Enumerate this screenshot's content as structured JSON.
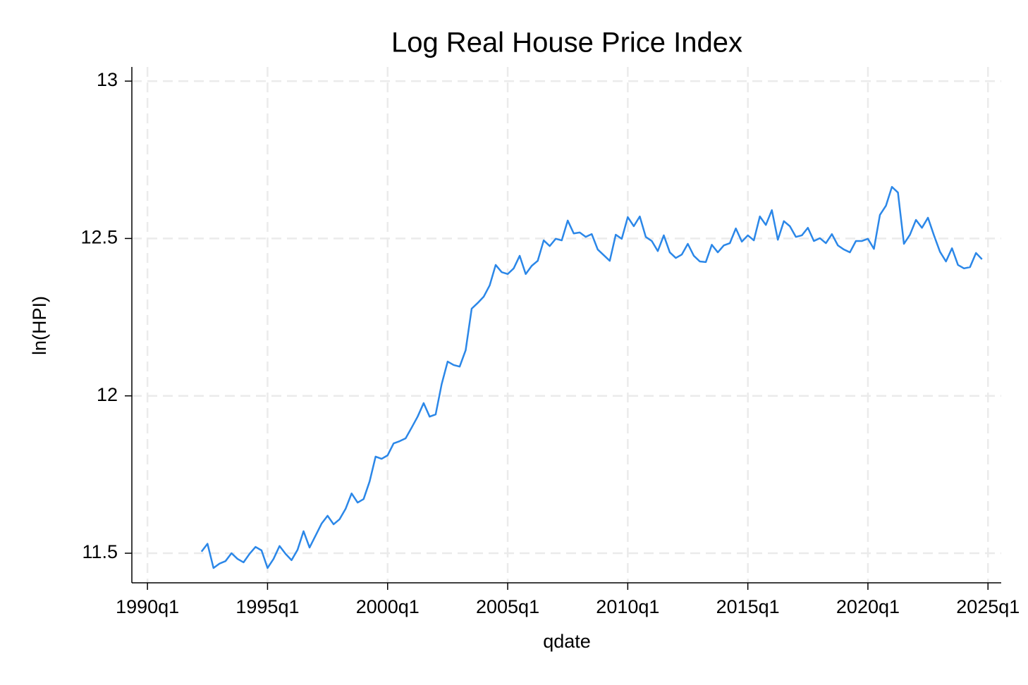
{
  "chart_data": {
    "type": "line",
    "title": "Log Real House Price Index",
    "x_label": "qdate",
    "y_label": "ln(HPI)",
    "color": "#2b87e8",
    "grid": true,
    "xlim": [
      117.4,
      262.2
    ],
    "ylim": [
      11.406,
      13.045
    ],
    "xticks": [
      {
        "value": 120,
        "label": "1990q1"
      },
      {
        "value": 140,
        "label": "1995q1"
      },
      {
        "value": 160,
        "label": "2000q1"
      },
      {
        "value": 180,
        "label": "2005q1"
      },
      {
        "value": 200,
        "label": "2010q1"
      },
      {
        "value": 220,
        "label": "2015q1"
      },
      {
        "value": 240,
        "label": "2020q1"
      },
      {
        "value": 260,
        "label": "2025q1"
      }
    ],
    "yticks": [
      11.5,
      12,
      12.5,
      13
    ],
    "x": [
      129,
      130,
      131,
      132,
      133,
      134,
      135,
      136,
      137,
      138,
      139,
      140,
      141,
      142,
      143,
      144,
      145,
      146,
      147,
      148,
      149,
      150,
      151,
      152,
      153,
      154,
      155,
      156,
      157,
      158,
      159,
      160,
      161,
      162,
      163,
      164,
      165,
      166,
      167,
      168,
      169,
      170,
      171,
      172,
      173,
      174,
      175,
      176,
      177,
      178,
      179,
      180,
      181,
      182,
      183,
      184,
      185,
      186,
      187,
      188,
      189,
      190,
      191,
      192,
      193,
      194,
      195,
      196,
      197,
      198,
      199,
      200,
      201,
      202,
      203,
      204,
      205,
      206,
      207,
      208,
      209,
      210,
      211,
      212,
      213,
      214,
      215,
      216,
      217,
      218,
      219,
      220,
      221,
      222,
      223,
      224,
      225,
      226,
      227,
      228,
      229,
      230,
      231,
      232,
      233,
      234,
      235,
      236,
      237,
      238,
      239,
      240,
      241,
      242,
      243,
      244,
      245,
      246,
      247,
      248,
      249,
      250,
      251,
      252,
      253,
      254,
      255,
      256,
      257,
      258,
      259
    ],
    "values": [
      11.505,
      11.53,
      11.453,
      11.467,
      11.475,
      11.5,
      11.482,
      11.471,
      11.498,
      11.52,
      11.509,
      11.453,
      11.482,
      11.523,
      11.498,
      11.478,
      11.511,
      11.57,
      11.518,
      11.556,
      11.594,
      11.619,
      11.592,
      11.608,
      11.641,
      11.69,
      11.661,
      11.672,
      11.728,
      11.807,
      11.8,
      11.811,
      11.849,
      11.856,
      11.865,
      11.899,
      11.934,
      11.977,
      11.934,
      11.941,
      12.037,
      12.109,
      12.098,
      12.093,
      12.145,
      12.277,
      12.295,
      12.315,
      12.351,
      12.416,
      12.393,
      12.387,
      12.405,
      12.445,
      12.387,
      12.413,
      12.429,
      12.494,
      12.476,
      12.499,
      12.494,
      12.557,
      12.516,
      12.519,
      12.505,
      12.514,
      12.465,
      12.447,
      12.429,
      12.512,
      12.499,
      12.568,
      12.539,
      12.57,
      12.505,
      12.492,
      12.46,
      12.51,
      12.456,
      12.438,
      12.449,
      12.483,
      12.445,
      12.427,
      12.425,
      12.48,
      12.456,
      12.478,
      12.485,
      12.532,
      12.49,
      12.51,
      12.494,
      12.57,
      12.543,
      12.59,
      12.496,
      12.555,
      12.539,
      12.505,
      12.51,
      12.534,
      12.492,
      12.501,
      12.485,
      12.514,
      12.478,
      12.465,
      12.456,
      12.492,
      12.492,
      12.499,
      12.467,
      12.575,
      12.604,
      12.664,
      12.646,
      12.483,
      12.512,
      12.559,
      12.534,
      12.566,
      12.51,
      12.458,
      12.427,
      12.469,
      12.416,
      12.405,
      12.409,
      12.454,
      12.434
    ]
  }
}
